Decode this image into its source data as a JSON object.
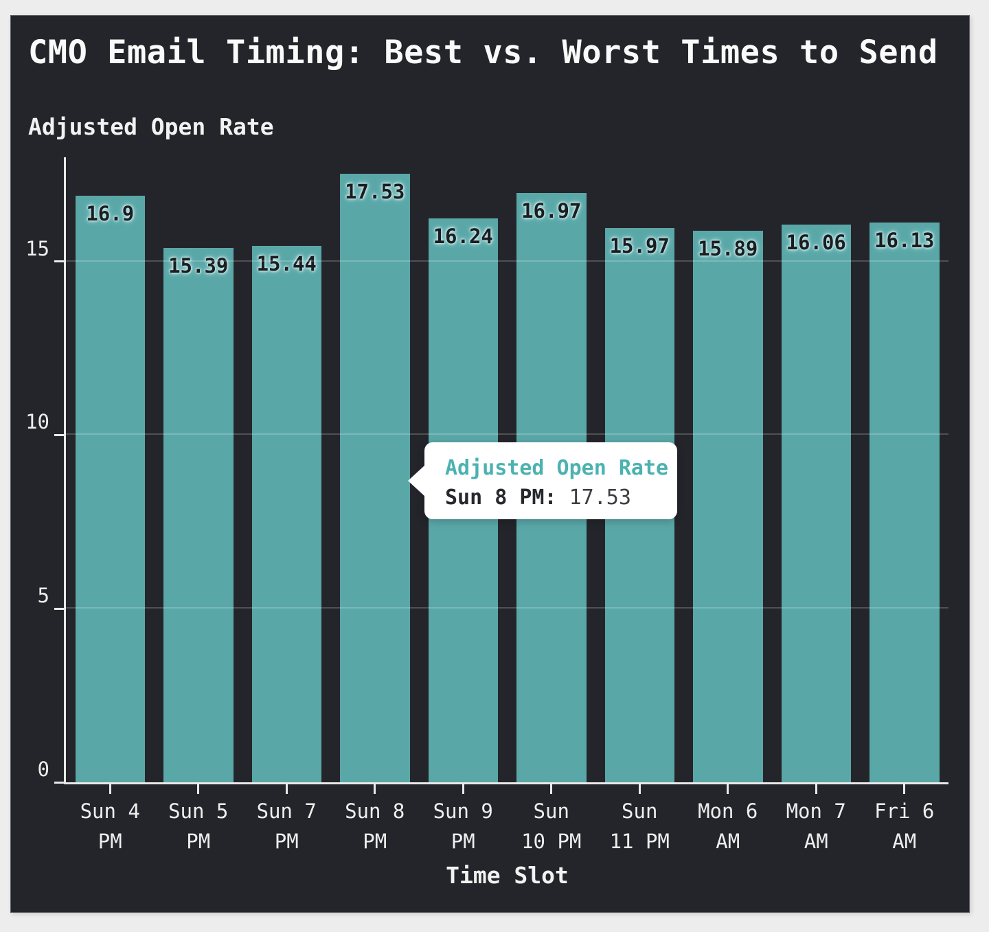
{
  "window": {
    "outer_background": "#ededed",
    "panel_background": "#24252a"
  },
  "chart_data": {
    "type": "bar",
    "title": "CMO Email Timing: Best vs. Worst Times to Send",
    "ylabel": "Adjusted Open Rate",
    "xlabel": "Time Slot",
    "categories": [
      "Sun 4 PM",
      "Sun 5 PM",
      "Sun 7 PM",
      "Sun 8 PM",
      "Sun 9 PM",
      "Sun 10 PM",
      "Sun 11 PM",
      "Mon 6 AM",
      "Mon 7 AM",
      "Fri 6 AM"
    ],
    "tick_label_lines": [
      [
        "Sun 4",
        "PM"
      ],
      [
        "Sun 5",
        "PM"
      ],
      [
        "Sun 7",
        "PM"
      ],
      [
        "Sun 8",
        "PM"
      ],
      [
        "Sun 9",
        "PM"
      ],
      [
        "Sun",
        "10 PM"
      ],
      [
        "Sun",
        "11 PM"
      ],
      [
        "Mon 6",
        "AM"
      ],
      [
        "Mon 7",
        "AM"
      ],
      [
        "Fri 6",
        "AM"
      ]
    ],
    "series_name": "Adjusted Open Rate",
    "values": [
      16.9,
      15.39,
      15.44,
      17.53,
      16.24,
      16.97,
      15.97,
      15.89,
      16.06,
      16.13
    ],
    "y_ticks": [
      0,
      5,
      10,
      15
    ],
    "ylim": [
      0,
      18
    ],
    "grid": "horizontal",
    "legend": "none",
    "bar_color": "#5aa7a8",
    "bar_label_color": "#1b1d21",
    "bar_label_halo_color": "#bce2e2",
    "axis_color": "#e9e9e9",
    "text_color": "#eeeeee"
  },
  "tooltip": {
    "series": "Adjusted Open Rate",
    "label": "Sun 8 PM:",
    "value": "17.53",
    "accent_color": "#4bb2b0",
    "background": "#ffffff"
  }
}
